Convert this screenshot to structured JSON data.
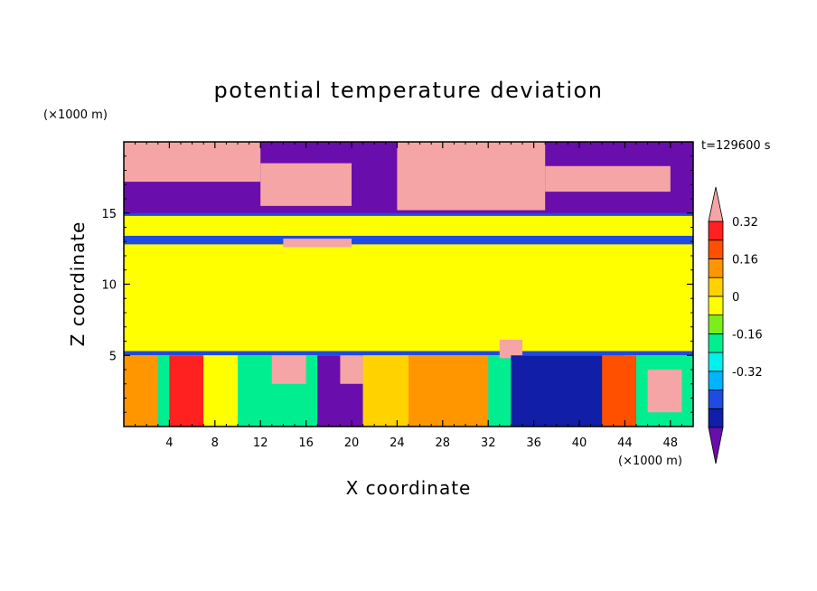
{
  "chart_data": {
    "type": "heatmap",
    "title": "potential temperature deviation",
    "xlabel": "X coordinate",
    "ylabel": "Z coordinate",
    "x_units": "(×1000 m)",
    "y_units": "(×1000 m)",
    "time_label": "t=129600 s",
    "xlim": [
      0,
      50
    ],
    "ylim": [
      0,
      20
    ],
    "x_ticks": [
      4,
      8,
      12,
      16,
      20,
      24,
      28,
      32,
      36,
      40,
      44,
      48
    ],
    "y_ticks": [
      5,
      10,
      15
    ],
    "colorbar": {
      "labels": [
        "0.32",
        "0.16",
        "0",
        "-0.16",
        "-0.32"
      ],
      "label_values": [
        0.32,
        0.16,
        0,
        -0.16,
        -0.32
      ],
      "levels": [
        -0.48,
        -0.4,
        -0.32,
        -0.24,
        -0.16,
        -0.08,
        0,
        0.08,
        0.16,
        0.24,
        0.32,
        0.4
      ],
      "colors": [
        "#6a0dad",
        "#101ea8",
        "#1e4be0",
        "#00b4ff",
        "#00f0f0",
        "#00ee90",
        "#7cee1c",
        "#ffff00",
        "#ffd200",
        "#ff9600",
        "#ff5000",
        "#ff2020",
        "#f5a5a5"
      ],
      "min_color": "#6a0dad",
      "max_color": "#f5a5a5"
    },
    "regions": [
      {
        "x": [
          0,
          50
        ],
        "z": [
          5.3,
          15
        ],
        "value": 0.04
      },
      {
        "x": [
          0,
          50
        ],
        "z": [
          13.8,
          15
        ],
        "value": 0.0
      },
      {
        "x": [
          0,
          50
        ],
        "z": [
          12.8,
          13.4
        ],
        "value": -0.36
      },
      {
        "x": [
          0,
          50
        ],
        "z": [
          14.8,
          15.1
        ],
        "value": -0.34
      },
      {
        "x": [
          0,
          50
        ],
        "z": [
          5.0,
          5.3
        ],
        "value": -0.34
      },
      {
        "x": [
          0,
          50
        ],
        "z": [
          15,
          20
        ],
        "value": -0.5
      },
      {
        "x": [
          0,
          12
        ],
        "z": [
          17.2,
          20
        ],
        "value": 0.5
      },
      {
        "x": [
          12,
          20
        ],
        "z": [
          15.5,
          18.5
        ],
        "value": 0.5
      },
      {
        "x": [
          24,
          37
        ],
        "z": [
          15.2,
          20
        ],
        "value": 0.5
      },
      {
        "x": [
          37,
          48
        ],
        "z": [
          16.5,
          18.3
        ],
        "value": 0.5
      },
      {
        "x": [
          14,
          20
        ],
        "z": [
          12.6,
          13.2
        ],
        "value": 0.5
      },
      {
        "x": [
          0,
          50
        ],
        "z": [
          0,
          5
        ],
        "value": -0.1
      },
      {
        "x": [
          0,
          3
        ],
        "z": [
          0,
          5
        ],
        "value": 0.2
      },
      {
        "x": [
          4,
          7
        ],
        "z": [
          0,
          5
        ],
        "value": 0.38
      },
      {
        "x": [
          7,
          10
        ],
        "z": [
          0,
          5
        ],
        "value": 0.05
      },
      {
        "x": [
          13,
          16
        ],
        "z": [
          3,
          5
        ],
        "value": 0.5
      },
      {
        "x": [
          17,
          21
        ],
        "z": [
          0,
          5
        ],
        "value": -0.5
      },
      {
        "x": [
          19,
          21
        ],
        "z": [
          3,
          5
        ],
        "value": 0.5
      },
      {
        "x": [
          21,
          25
        ],
        "z": [
          0,
          5
        ],
        "value": 0.08
      },
      {
        "x": [
          25,
          32
        ],
        "z": [
          0,
          5
        ],
        "value": 0.22
      },
      {
        "x": [
          33,
          35
        ],
        "z": [
          4.8,
          6.1
        ],
        "value": 0.5
      },
      {
        "x": [
          34,
          44
        ],
        "z": [
          0,
          5
        ],
        "value": -0.48
      },
      {
        "x": [
          42,
          45
        ],
        "z": [
          0,
          5
        ],
        "value": 0.3
      },
      {
        "x": [
          46,
          49
        ],
        "z": [
          1,
          4
        ],
        "value": 0.5
      }
    ]
  }
}
